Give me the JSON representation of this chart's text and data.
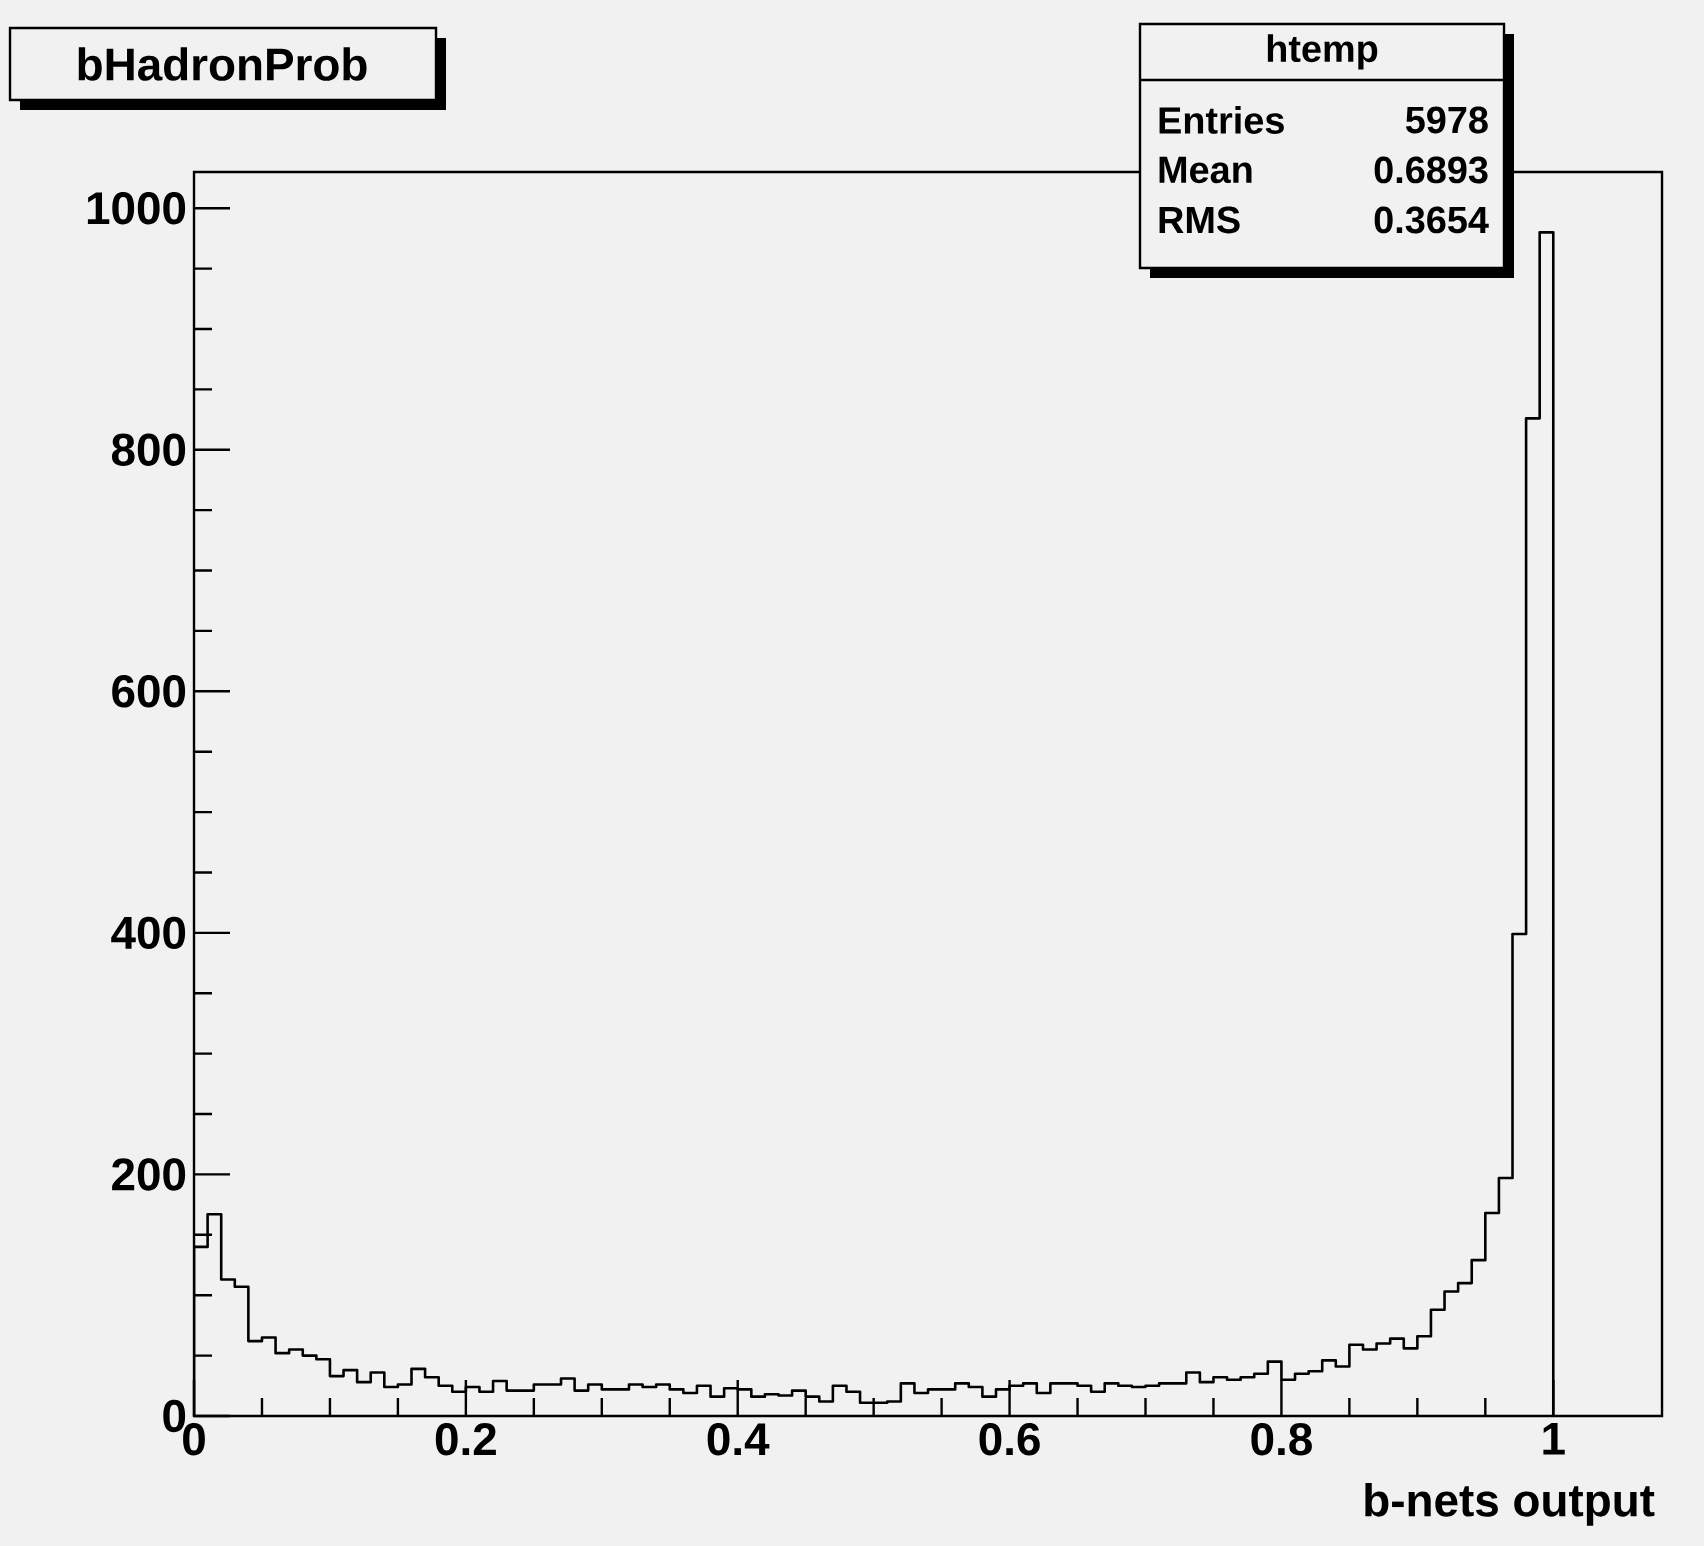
{
  "chart_data": {
    "type": "histogram",
    "title": "bHadronProb",
    "xlabel": "b-nets output",
    "annotations": [
      "htemp",
      "Entries",
      "5978",
      "Mean",
      "0.6893",
      "RMS",
      "0.3654"
    ],
    "bins": [
      0,
      0.01,
      0.02,
      0.03,
      0.04,
      0.05,
      0.06,
      0.07,
      0.08,
      0.09,
      0.1,
      0.11,
      0.12,
      0.13,
      0.14,
      0.15,
      0.16,
      0.17,
      0.18,
      0.19,
      0.2,
      0.21,
      0.22,
      0.23,
      0.24,
      0.25,
      0.26,
      0.27,
      0.28,
      0.29,
      0.3,
      0.31,
      0.32,
      0.33,
      0.34,
      0.35,
      0.36,
      0.37,
      0.38,
      0.39,
      0.4,
      0.41,
      0.42,
      0.43,
      0.44,
      0.45,
      0.46,
      0.47,
      0.48,
      0.49,
      0.5,
      0.51,
      0.52,
      0.53,
      0.54,
      0.55,
      0.56,
      0.57,
      0.58,
      0.59,
      0.6,
      0.61,
      0.62,
      0.63,
      0.64,
      0.65,
      0.66,
      0.67,
      0.68,
      0.69,
      0.7,
      0.71,
      0.72,
      0.73,
      0.74,
      0.75,
      0.76,
      0.77,
      0.78,
      0.79,
      0.8,
      0.81,
      0.82,
      0.83,
      0.84,
      0.85,
      0.86,
      0.87,
      0.88,
      0.89,
      0.9,
      0.91,
      0.92,
      0.93,
      0.94,
      0.95,
      0.96,
      0.97,
      0.98,
      0.99,
      1
    ],
    "values": [
      140,
      167,
      113,
      107,
      62,
      65,
      52,
      55,
      50,
      47,
      33,
      38,
      28,
      36,
      24,
      26,
      39,
      32,
      25,
      20,
      24,
      20,
      29,
      21,
      21,
      26,
      26,
      31,
      21,
      26,
      22,
      22,
      26,
      24,
      26,
      22,
      19,
      25,
      16,
      23,
      22,
      16,
      18,
      17,
      21,
      16,
      12,
      25,
      20,
      11,
      11,
      12,
      27,
      19,
      22,
      22,
      27,
      24,
      16,
      22,
      25,
      27,
      19,
      27,
      27,
      25,
      20,
      27,
      25,
      24,
      25,
      27,
      27,
      36,
      28,
      32,
      30,
      32,
      35,
      45,
      30,
      35,
      37,
      46,
      41,
      59,
      55,
      60,
      64,
      56,
      66,
      88,
      103,
      110,
      129,
      168,
      197,
      399,
      826,
      980
    ],
    "color": "#000000",
    "xlim": [
      0,
      1.08
    ],
    "ylim": [
      0,
      1030
    ],
    "xticks": [
      0,
      0.2,
      0.4,
      0.6,
      0.8,
      1
    ],
    "yticks": [
      0,
      200,
      400,
      600,
      800,
      1000
    ],
    "grid": false
  }
}
